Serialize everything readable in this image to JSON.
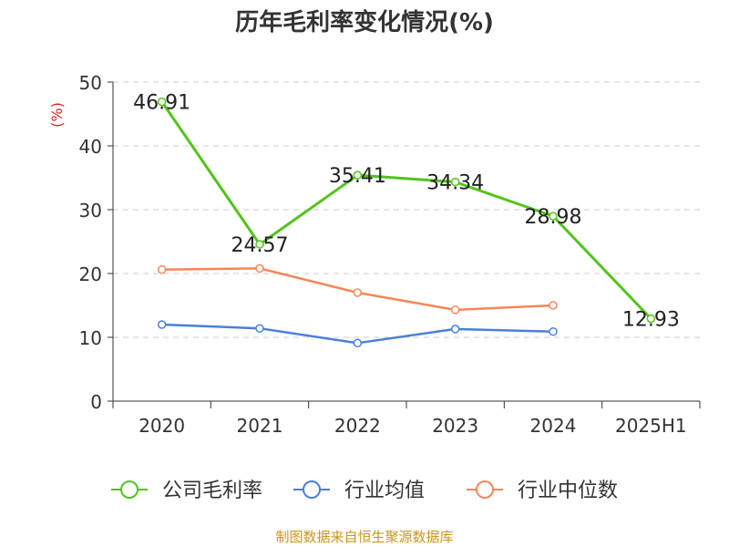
{
  "title": "历年毛利率变化情况(%)",
  "source": "制图数据来自恒生聚源数据库",
  "chart_data": {
    "type": "line",
    "title": "历年毛利率变化情况(%)",
    "xlabel": "",
    "ylabel": "(%)",
    "ylim": [
      0,
      50
    ],
    "yticks": [
      0,
      10,
      20,
      30,
      40,
      50
    ],
    "grid": true,
    "legend_position": "bottom",
    "categories": [
      "2020",
      "2021",
      "2022",
      "2023",
      "2024",
      "2025H1"
    ],
    "series": [
      {
        "name": "公司毛利率",
        "color": "#52c41a",
        "values": [
          46.91,
          24.57,
          35.41,
          34.34,
          28.98,
          12.93
        ],
        "labels": [
          "46.91",
          "24.57",
          "35.41",
          "34.34",
          "28.98",
          "12.93"
        ]
      },
      {
        "name": "行业均值",
        "color": "#4a7fdc",
        "values": [
          12.0,
          11.4,
          9.1,
          11.3,
          10.9,
          null
        ]
      },
      {
        "name": "行业中位数",
        "color": "#f5875a",
        "values": [
          20.6,
          20.8,
          17.0,
          14.3,
          15.0,
          null
        ]
      }
    ]
  }
}
